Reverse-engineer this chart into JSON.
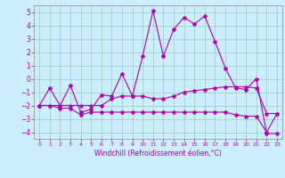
{
  "title": "",
  "xlabel": "Windchill (Refroidissement éolien,°C)",
  "ylabel": "",
  "background_color": "#cceeff",
  "grid_color": "#99ccbb",
  "line_color": "#aa00aa",
  "spine_color": "#888888",
  "xlim": [
    -0.5,
    23.5
  ],
  "ylim": [
    -4.5,
    5.5
  ],
  "yticks": [
    -4,
    -3,
    -2,
    -1,
    0,
    1,
    2,
    3,
    4,
    5
  ],
  "xticks": [
    0,
    1,
    2,
    3,
    4,
    5,
    6,
    7,
    8,
    9,
    10,
    11,
    12,
    13,
    14,
    15,
    16,
    17,
    18,
    19,
    20,
    21,
    22,
    23
  ],
  "series": [
    {
      "x": [
        0,
        1,
        2,
        3,
        4,
        5,
        6,
        7,
        8,
        9,
        10,
        11,
        12,
        13,
        14,
        15,
        16,
        17,
        18,
        19,
        20,
        21,
        22,
        23
      ],
      "y": [
        -2.0,
        -0.7,
        -2.0,
        -0.5,
        -2.5,
        -2.3,
        -1.2,
        -1.3,
        0.4,
        -1.3,
        1.7,
        5.1,
        1.7,
        3.7,
        4.6,
        4.1,
        4.7,
        2.8,
        0.8,
        -0.7,
        -0.8,
        0.0,
        -4.1,
        -4.1
      ]
    },
    {
      "x": [
        0,
        1,
        2,
        3,
        4,
        5,
        6,
        7,
        8,
        9,
        10,
        11,
        12,
        13,
        14,
        15,
        16,
        17,
        18,
        19,
        20,
        21,
        22,
        23
      ],
      "y": [
        -2.0,
        -2.0,
        -2.0,
        -2.0,
        -2.0,
        -2.0,
        -2.0,
        -1.5,
        -1.3,
        -1.3,
        -1.3,
        -1.5,
        -1.5,
        -1.3,
        -1.0,
        -0.9,
        -0.8,
        -0.7,
        -0.6,
        -0.6,
        -0.6,
        -0.7,
        -2.6,
        -2.6
      ]
    },
    {
      "x": [
        0,
        1,
        2,
        3,
        4,
        5,
        6,
        7,
        8,
        9,
        10,
        11,
        12,
        13,
        14,
        15,
        16,
        17,
        18,
        19,
        20,
        21,
        22,
        23
      ],
      "y": [
        -2.0,
        -2.0,
        -2.2,
        -2.2,
        -2.7,
        -2.5,
        -2.5,
        -2.5,
        -2.5,
        -2.5,
        -2.5,
        -2.5,
        -2.5,
        -2.5,
        -2.5,
        -2.5,
        -2.5,
        -2.5,
        -2.5,
        -2.7,
        -2.8,
        -2.8,
        -4.0,
        -2.6
      ]
    }
  ]
}
